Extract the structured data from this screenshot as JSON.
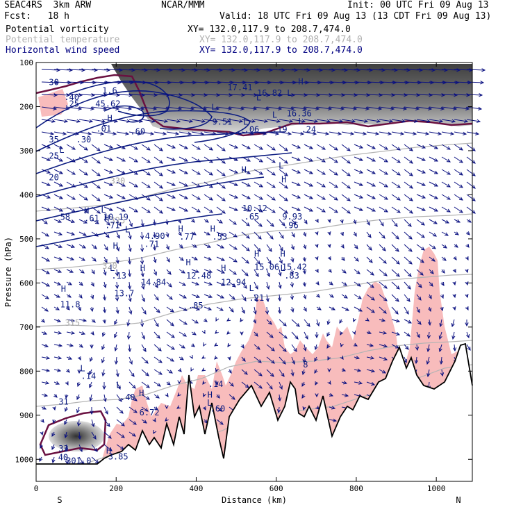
{
  "header": {
    "model": "SEAC4RS  3km ARW",
    "org": "NCAR/MMM",
    "init": "Init: 00 UTC Fri 09 Aug 13",
    "fcst": "Fcst:   18 h",
    "valid": "Valid: 18 UTC Fri 09 Aug 13 (13 CDT Fri 09 Aug 13)"
  },
  "legend": [
    {
      "name": "Potential vorticity",
      "xy": "XY= 132.0,117.9 to 208.7,474.0",
      "color": "#000000",
      "xy_color": "#000000"
    },
    {
      "name": "Potential temperature",
      "xy": "XY= 132.0,117.9 to 208.7,474.0",
      "color": "#b0b0b0",
      "xy_color": "#b0b0b0"
    },
    {
      "name": "Horizontal wind speed",
      "xy": "XY= 132.0,117.9 to 208.7,474.0",
      "color": "#000080",
      "xy_color": "#000080"
    }
  ],
  "chart_data": {
    "type": "cross-section",
    "xlabel": "Distance (km)",
    "ylabel": "Pressure (hPa)",
    "xlim": [
      0,
      1090
    ],
    "ylim": [
      1050,
      100
    ],
    "x_ticks": [
      0,
      200,
      400,
      600,
      800,
      1000
    ],
    "y_ticks": [
      100,
      200,
      300,
      400,
      500,
      600,
      700,
      800,
      900,
      1000
    ],
    "x_end_labels": {
      "left": "S",
      "right": "N"
    },
    "theta_labels": [
      {
        "text": "320",
        "x": 165,
        "p": 568
      },
      {
        "text": "315",
        "x": 72,
        "p": 697
      },
      {
        "text": "325",
        "x": 185,
        "p": 465
      },
      {
        "text": "330",
        "x": 185,
        "p": 375
      }
    ],
    "wind_labels": [
      {
        "text": "30",
        "x": 32,
        "p": 151
      },
      {
        "text": "35",
        "x": 32,
        "p": 281
      },
      {
        "text": "25",
        "x": 32,
        "p": 318
      },
      {
        "text": "20",
        "x": 32,
        "p": 367
      }
    ],
    "extrema_labels": [
      {
        "text": "H",
        "x": 178,
        "p": 233
      },
      {
        "text": "L",
        "x": 165,
        "p": 243
      },
      {
        "text": "L",
        "x": 58,
        "p": 305
      },
      {
        "text": "H",
        "x": 120,
        "p": 443
      },
      {
        "text": "L",
        "x": 162,
        "p": 440
      },
      {
        "text": "H",
        "x": 170,
        "p": 460
      },
      {
        "text": "L",
        "x": 222,
        "p": 485
      },
      {
        "text": "H",
        "x": 355,
        "p": 484
      },
      {
        "text": "H",
        "x": 435,
        "p": 484
      },
      {
        "text": "L",
        "x": 517,
        "p": 241
      },
      {
        "text": "L",
        "x": 438,
        "p": 208
      },
      {
        "text": "H",
        "x": 513,
        "p": 350
      },
      {
        "text": "L",
        "x": 606,
        "p": 340
      },
      {
        "text": "H",
        "x": 613,
        "p": 372
      },
      {
        "text": "L",
        "x": 590,
        "p": 225
      },
      {
        "text": "L",
        "x": 655,
        "p": 240
      },
      {
        "text": "H",
        "x": 192,
        "p": 522
      },
      {
        "text": "L",
        "x": 184,
        "p": 573
      },
      {
        "text": "H",
        "x": 260,
        "p": 573
      },
      {
        "text": "H",
        "x": 374,
        "p": 560
      },
      {
        "text": "H",
        "x": 462,
        "p": 573
      },
      {
        "text": "H",
        "x": 545,
        "p": 540
      },
      {
        "text": "H",
        "x": 610,
        "p": 540
      },
      {
        "text": "L",
        "x": 532,
        "p": 618
      },
      {
        "text": "L",
        "x": 610,
        "p": 573
      },
      {
        "text": "H",
        "x": 62,
        "p": 620
      },
      {
        "text": "L",
        "x": 110,
        "p": 800
      },
      {
        "text": "L",
        "x": 200,
        "p": 838
      },
      {
        "text": "H",
        "x": 257,
        "p": 856
      },
      {
        "text": "H",
        "x": 175,
        "p": 987
      },
      {
        "text": "H",
        "x": 428,
        "p": 860
      },
      {
        "text": "L",
        "x": 427,
        "p": 878
      },
      {
        "text": "H",
        "x": 655,
        "p": 150
      },
      {
        "text": "L",
        "x": 550,
        "p": 186
      },
      {
        "text": "L",
        "x": 627,
        "p": 176
      }
    ],
    "value_labels": [
      {
        "text": ".40",
        "x": 70,
        "p": 185
      },
      {
        "text": ".25",
        "x": 70,
        "p": 200
      },
      {
        "text": "45.62",
        "x": 148,
        "p": 200
      },
      {
        "text": "1.6",
        "x": 165,
        "p": 170
      },
      {
        "text": "9.51",
        "x": 440,
        "p": 241
      },
      {
        "text": ".06",
        "x": 520,
        "p": 258
      },
      {
        "text": ".19",
        "x": 590,
        "p": 258
      },
      {
        "text": ".24",
        "x": 662,
        "p": 258
      },
      {
        "text": ".01",
        "x": 150,
        "p": 257
      },
      {
        "text": ".60",
        "x": 235,
        "p": 263
      },
      {
        "text": ".30",
        "x": 100,
        "p": 281
      },
      {
        "text": "58",
        "x": 60,
        "p": 457
      },
      {
        "text": ".61",
        "x": 120,
        "p": 460
      },
      {
        "text": "10.19",
        "x": 168,
        "p": 457
      },
      {
        "text": ".71",
        "x": 172,
        "p": 476
      },
      {
        "text": "4.90",
        "x": 272,
        "p": 500
      },
      {
        "text": ".71",
        "x": 270,
        "p": 518
      },
      {
        "text": ".77",
        "x": 358,
        "p": 502
      },
      {
        "text": ".53",
        "x": 440,
        "p": 502
      },
      {
        "text": "10.12",
        "x": 515,
        "p": 437
      },
      {
        "text": ".65",
        "x": 520,
        "p": 456
      },
      {
        "text": "9.93",
        "x": 615,
        "p": 456
      },
      {
        "text": ".96",
        "x": 618,
        "p": 476
      },
      {
        "text": "15.06",
        "x": 545,
        "p": 570
      },
      {
        "text": "15.42",
        "x": 614,
        "p": 570
      },
      {
        "text": ".83",
        "x": 620,
        "p": 590
      },
      {
        "text": "12.48",
        "x": 375,
        "p": 590
      },
      {
        "text": "12.94",
        "x": 462,
        "p": 605
      },
      {
        "text": ".13",
        "x": 188,
        "p": 590
      },
      {
        "text": "14.84",
        "x": 262,
        "p": 605
      },
      {
        "text": "13.7",
        "x": 195,
        "p": 630
      },
      {
        "text": "11.8",
        "x": 60,
        "p": 655
      },
      {
        "text": ".21",
        "x": 532,
        "p": 640
      },
      {
        "text": ".85",
        "x": 380,
        "p": 658
      },
      {
        "text": ".14",
        "x": 112,
        "p": 818
      },
      {
        "text": ".40",
        "x": 210,
        "p": 866
      },
      {
        "text": "6.72",
        "x": 258,
        "p": 900
      },
      {
        "text": ".14",
        "x": 430,
        "p": 836
      },
      {
        "text": ".60",
        "x": 435,
        "p": 892
      },
      {
        "text": "31",
        "x": 56,
        "p": 876
      },
      {
        "text": "33",
        "x": 56,
        "p": 982
      },
      {
        "text": "40",
        "x": 55,
        "p": 1002
      },
      {
        "text": "3.85",
        "x": 180,
        "p": 1000
      },
      {
        "text": "301.0",
        "x": 75,
        "p": 1010
      },
      {
        "text": "8",
        "x": 667,
        "p": 792
      },
      {
        "text": "16.82",
        "x": 552,
        "p": 176
      },
      {
        "text": "17.41",
        "x": 478,
        "p": 163
      },
      {
        "text": "16.36",
        "x": 626,
        "p": 222
      }
    ]
  }
}
